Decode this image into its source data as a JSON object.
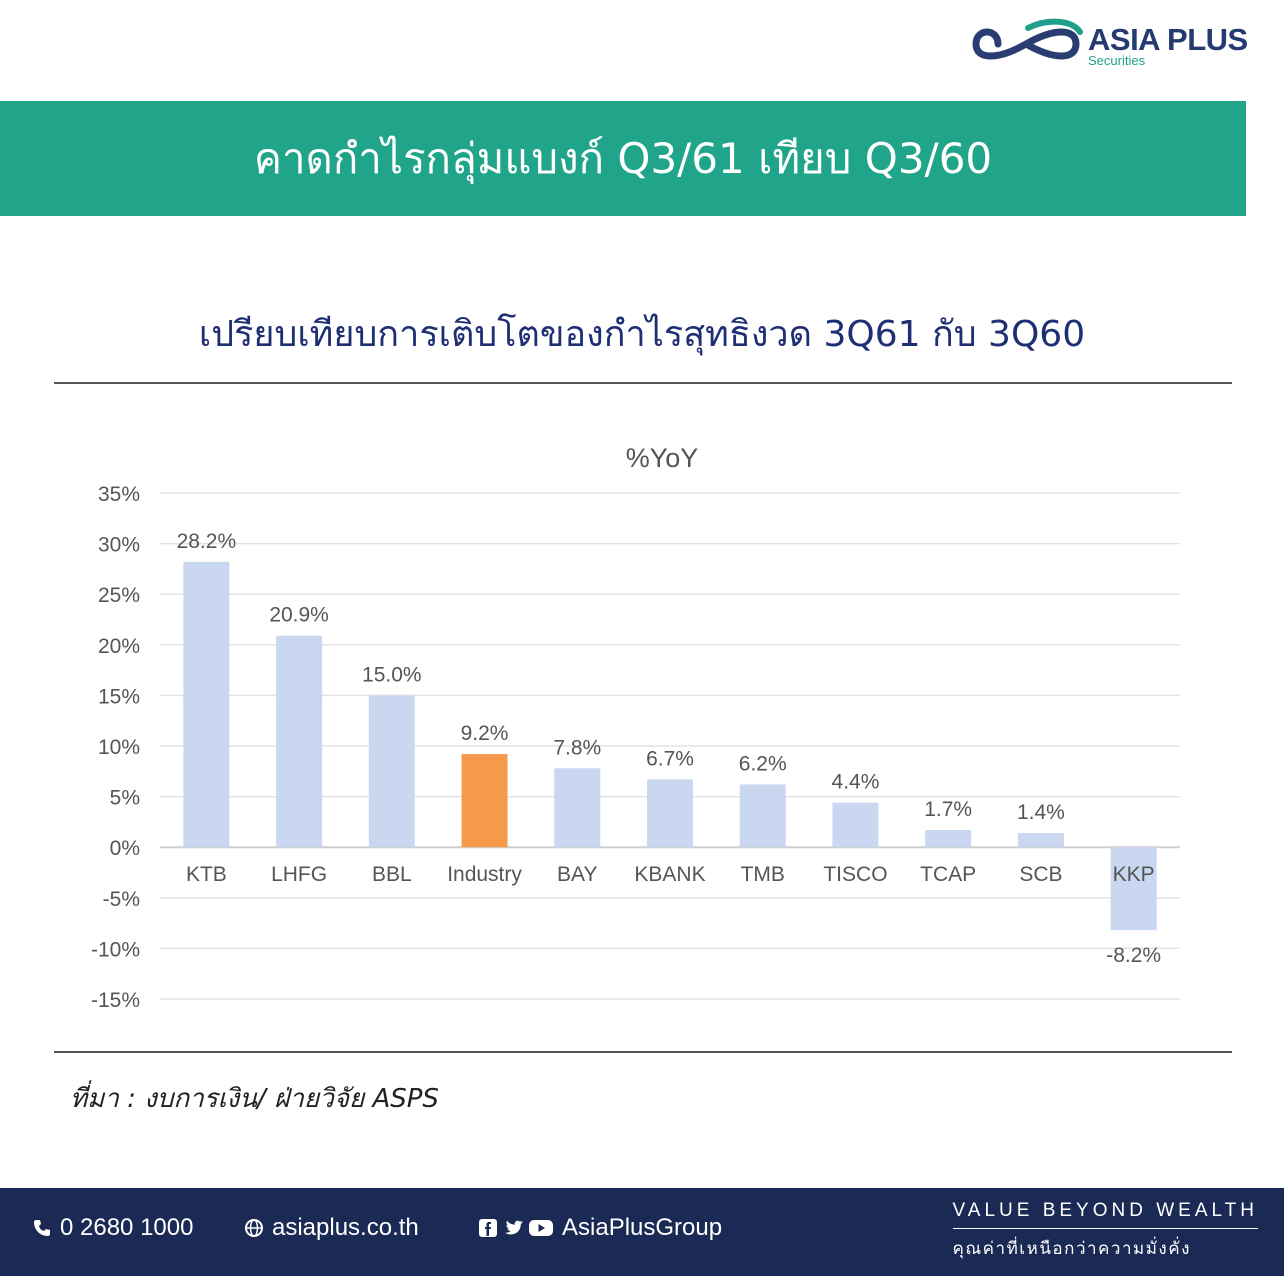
{
  "brand": {
    "name": "ASIA PLUS",
    "sub": "Securities"
  },
  "header": {
    "title": "คาดกำไรกลุ่มแบงก์ Q3/61 เทียบ Q3/60"
  },
  "subtitle": "เปรียบเทียบการเติบโตของกำไรสุทธิงวด 3Q61 กับ 3Q60",
  "source": "ที่มา : งบการเงิน/ ฝ่ายวิจัย ASPS",
  "colors": {
    "bar": "#c9d7f0",
    "highlight": "#f5994a",
    "band": "#21a58a",
    "footer": "#1b2a55"
  },
  "chart_data": {
    "type": "bar",
    "title": "%YoY",
    "categories": [
      "KTB",
      "LHFG",
      "BBL",
      "Industry",
      "BAY",
      "KBANK",
      "TMB",
      "TISCO",
      "TCAP",
      "SCB",
      "KKP"
    ],
    "values": [
      28.2,
      20.9,
      15.0,
      9.2,
      7.8,
      6.7,
      6.2,
      4.4,
      1.7,
      1.4,
      -8.2
    ],
    "data_labels": [
      "28.2%",
      "20.9%",
      "15.0%",
      "9.2%",
      "7.8%",
      "6.7%",
      "6.2%",
      "4.4%",
      "1.7%",
      "1.4%",
      "-8.2%"
    ],
    "highlight": "Industry",
    "ylim": [
      -15,
      35
    ],
    "yticks": [
      "35%",
      "30%",
      "25%",
      "20%",
      "15%",
      "10%",
      "5%",
      "0%",
      "-5%",
      "-10%",
      "-15%"
    ],
    "grid": true
  },
  "footer": {
    "phone": "0 2680 1000",
    "website": "asiaplus.co.th",
    "social": "AsiaPlusGroup",
    "tagline_en": "VALUE BEYOND WEALTH",
    "tagline_th": "คุณค่าที่เหนือกว่าความมั่งคั่ง"
  }
}
